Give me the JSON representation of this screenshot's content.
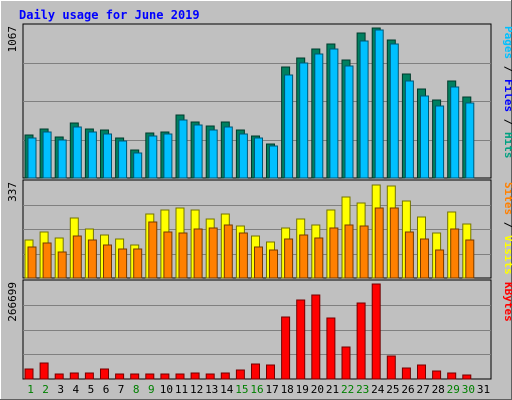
{
  "chart_data": {
    "type": "bar",
    "title": "Daily usage for June 2019",
    "categories": [
      "1",
      "2",
      "3",
      "4",
      "5",
      "6",
      "7",
      "8",
      "9",
      "10",
      "11",
      "12",
      "13",
      "14",
      "15",
      "16",
      "17",
      "18",
      "19",
      "20",
      "21",
      "22",
      "23",
      "24",
      "25",
      "26",
      "27",
      "28",
      "29",
      "30",
      "31"
    ],
    "weekend_days": [
      "1",
      "2",
      "8",
      "9",
      "15",
      "16",
      "22",
      "23",
      "29",
      "30"
    ],
    "panels": [
      {
        "name": "hits-pages-files",
        "ymax_label": "1067",
        "ymax": 1067,
        "legend": [
          {
            "text": "Pages",
            "color": "#00c0ff"
          },
          {
            "text": " / ",
            "color": "#000000"
          },
          {
            "text": "Files",
            "color": "#0000ff"
          },
          {
            "text": " / ",
            "color": "#000000"
          },
          {
            "text": "Hits",
            "color": "#00a080"
          }
        ],
        "series": [
          {
            "name": "Hits",
            "color": "#008060",
            "values": [
              305,
              345,
              290,
              390,
              350,
              340,
              285,
              200,
              320,
              330,
              450,
              400,
              370,
              395,
              340,
              300,
              240,
              790,
              855,
              915,
              955,
              840,
              1030,
              1070,
              985,
              740,
              630,
              555,
              690,
              575,
              0
            ]
          },
          {
            "name": "Files",
            "color": "#00c0ff",
            "values": [
              285,
              325,
              270,
              360,
              325,
              315,
              265,
              180,
              300,
              310,
              415,
              380,
              340,
              365,
              315,
              285,
              225,
              735,
              815,
              880,
              920,
              800,
              975,
              1055,
              955,
              690,
              580,
              510,
              645,
              530,
              0
            ]
          }
        ]
      },
      {
        "name": "sites-visits",
        "ymax_label": "337",
        "ymax": 337,
        "legend": [
          {
            "text": "Sites",
            "color": "#ff8000"
          },
          {
            "text": " / ",
            "color": "#000000"
          },
          {
            "text": "Visits",
            "color": "#ffff00"
          }
        ],
        "series": [
          {
            "name": "Visits",
            "color": "#ffff00",
            "values": [
              135,
              165,
              145,
              215,
              175,
              155,
              140,
              120,
              230,
              245,
              250,
              245,
              210,
              230,
              185,
              150,
              130,
              180,
              210,
              190,
              245,
              290,
              270,
              335,
              330,
              275,
              220,
              160,
              235,
              195,
              0
            ]
          },
          {
            "name": "Sites",
            "color": "#ff8000",
            "values": [
              110,
              125,
              95,
              150,
              135,
              120,
              105,
              105,
              200,
              165,
              160,
              175,
              180,
              190,
              160,
              110,
              100,
              140,
              155,
              145,
              180,
              190,
              185,
              250,
              250,
              165,
              140,
              100,
              175,
              135,
              0
            ]
          }
        ]
      },
      {
        "name": "kbytes",
        "ymax_label": "266699",
        "ymax": 266699,
        "legend": [
          {
            "text": "KBytes",
            "color": "#ff0000"
          }
        ],
        "series": [
          {
            "name": "KBytes",
            "color": "#ff0000",
            "values": [
              27000,
              44000,
              14000,
              18000,
              16000,
              27000,
              13000,
              13000,
              13000,
              13000,
              13000,
              16000,
              14000,
              16000,
              24000,
              43000,
              40000,
              175000,
              223000,
              235000,
              172000,
              90000,
              212000,
              266699,
              65000,
              30000,
              38000,
              23000,
              18000,
              12000,
              0
            ]
          }
        ]
      }
    ]
  }
}
